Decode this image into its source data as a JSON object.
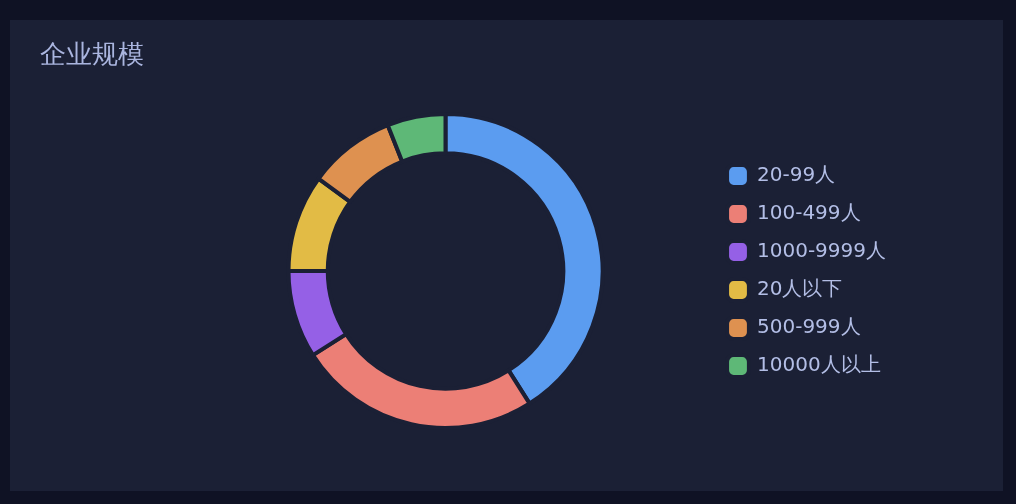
{
  "chart_data": {
    "type": "donut",
    "title": "企业规模",
    "categories": [
      "20-99人",
      "100-499人",
      "1000-9999人",
      "20人以下",
      "500-999人",
      "10000人以上"
    ],
    "values": [
      41,
      25,
      9,
      10,
      9,
      6
    ],
    "colors": [
      "#5b9cf0",
      "#ec7f76",
      "#9560e6",
      "#e2bb45",
      "#de9150",
      "#5eb877"
    ],
    "legend": "right"
  }
}
